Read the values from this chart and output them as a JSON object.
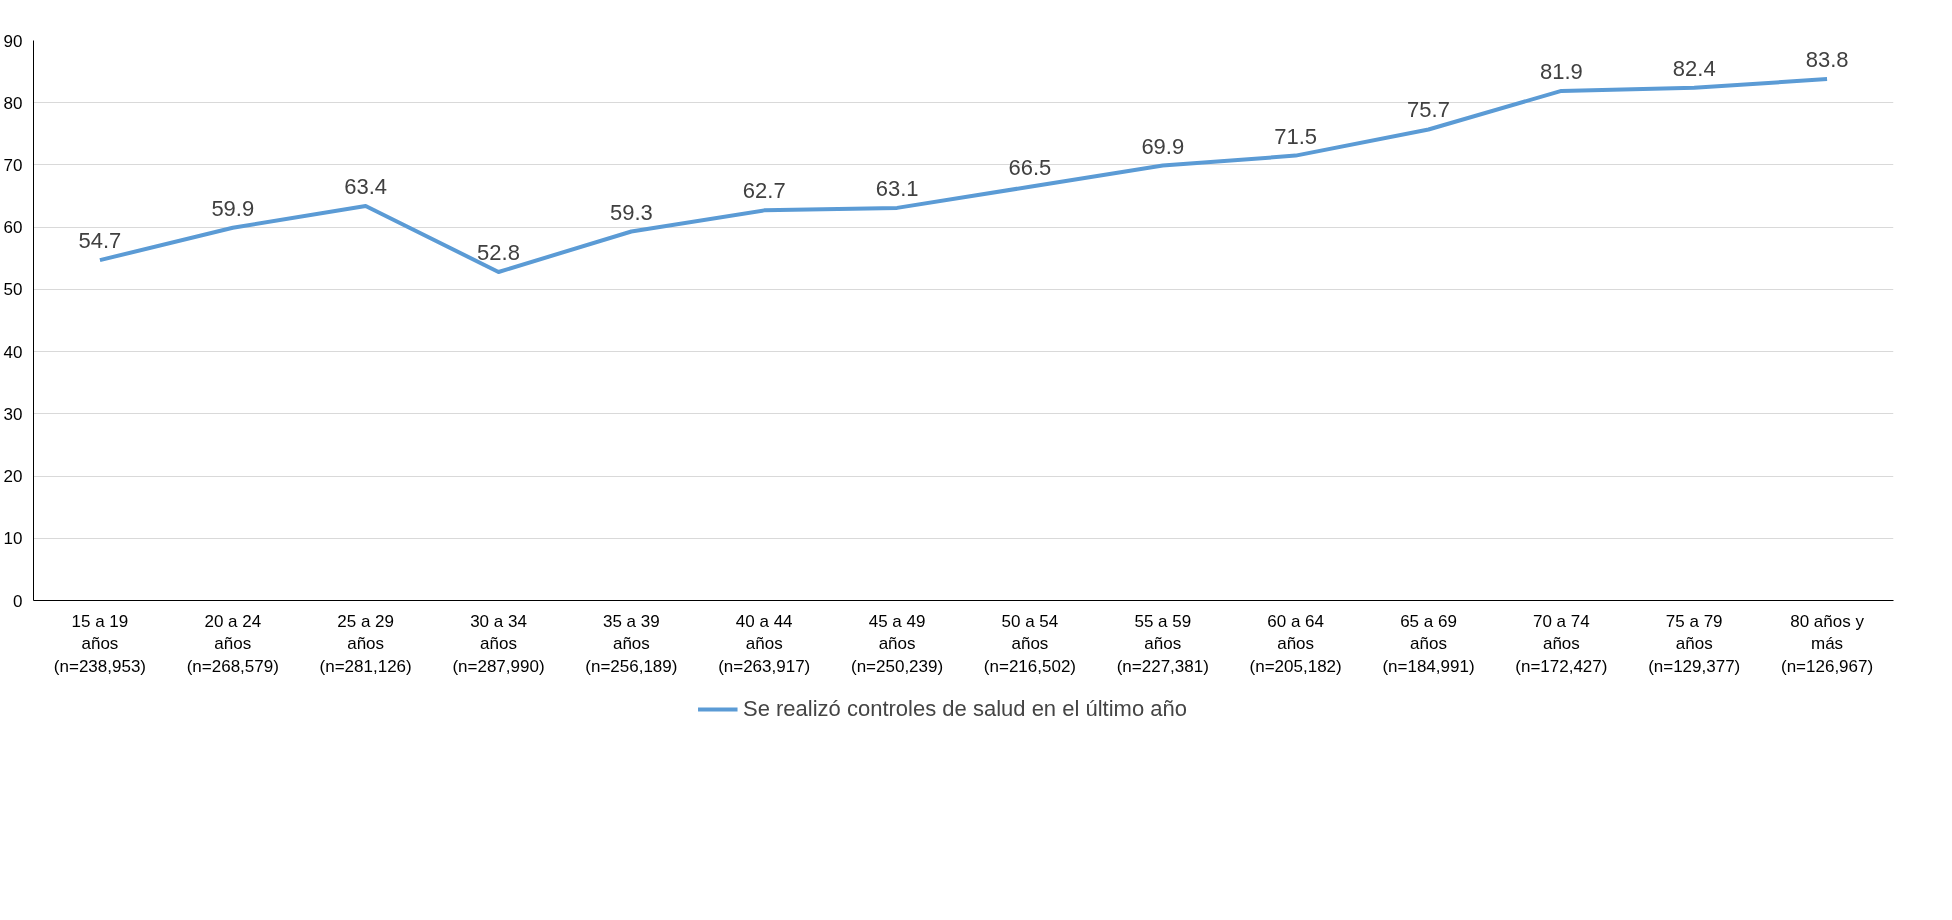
{
  "chart_data": {
    "type": "line",
    "categories": [
      "15 a 19\naños\n(n=238,953)",
      "20 a 24\naños\n(n=268,579)",
      "25 a 29\naños\n(n=281,126)",
      "30 a 34\naños\n(n=287,990)",
      "35 a 39\naños\n(n=256,189)",
      "40 a 44\naños\n(n=263,917)",
      "45 a 49\naños\n(n=250,239)",
      "50 a 54\naños\n(n=216,502)",
      "55 a 59\naños\n(n=227,381)",
      "60 a 64\naños\n(n=205,182)",
      "65 a 69\naños\n(n=184,991)",
      "70 a 74\naños\n(n=172,427)",
      "75 a 79\naños\n(n=129,377)",
      "80 años y\nmás\n(n=126,967)"
    ],
    "series": [
      {
        "name": "Se realizó controles de salud en el último año",
        "color": "#5b9bd5",
        "values": [
          54.7,
          59.9,
          63.4,
          52.8,
          59.3,
          62.7,
          63.1,
          66.5,
          69.9,
          71.5,
          75.7,
          81.9,
          82.4,
          83.8
        ]
      }
    ],
    "ylim": [
      0,
      90
    ],
    "yticks": [
      0,
      10,
      20,
      30,
      40,
      50,
      60,
      70,
      80,
      90
    ],
    "grid": "y",
    "legend": "bottom",
    "data_labels": true,
    "marker": "none",
    "line_style": "solid"
  }
}
